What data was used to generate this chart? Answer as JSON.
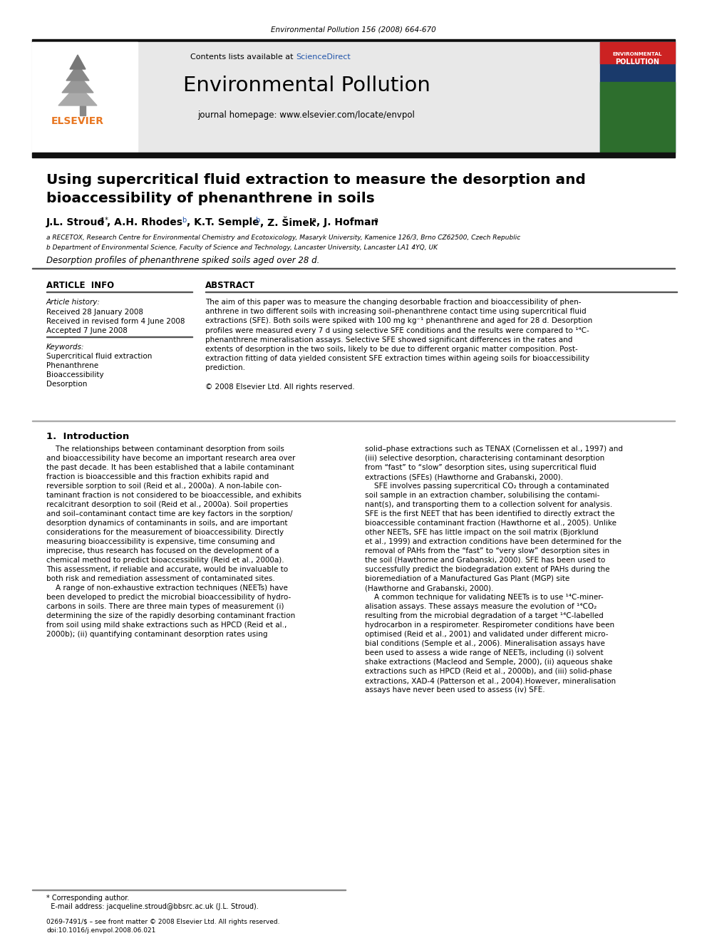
{
  "journal_ref": "Environmental Pollution 156 (2008) 664-670",
  "journal_name": "Environmental Pollution",
  "journal_homepage": "journal homepage: www.elsevier.com/locate/envpol",
  "contents_line": "Contents lists available at ScienceDirect",
  "title_line1": "Using supercritical fluid extraction to measure the desorption and",
  "title_line2": "bioaccessibility of phenanthrene in soils",
  "affil_a": "a RECETOX, Research Centre for Environmental Chemistry and Ecotoxicology, Masaryk University, Kamenice 126/3, Brno CZ62500, Czech Republic",
  "affil_b": "b Department of Environmental Science, Faculty of Science and Technology, Lancaster University, Lancaster LA1 4YQ, UK",
  "graphical_abstract": "Desorption profiles of phenanthrene spiked soils aged over 28 d.",
  "article_info_title": "ARTICLE  INFO",
  "article_history_label": "Article history:",
  "received": "Received 28 January 2008",
  "revised": "Received in revised form 4 June 2008",
  "accepted": "Accepted 7 June 2008",
  "keywords_label": "Keywords:",
  "keywords": [
    "Supercritical fluid extraction",
    "Phenanthrene",
    "Bioaccessibility",
    "Desorption"
  ],
  "abstract_title": "ABSTRACT",
  "abstract_lines": [
    "The aim of this paper was to measure the changing desorbable fraction and bioaccessibility of phen-",
    "anthrene in two different soils with increasing soil–phenanthrene contact time using supercritical fluid",
    "extractions (SFE). Both soils were spiked with 100 mg kg⁻¹ phenanthrene and aged for 28 d. Desorption",
    "profiles were measured every 7 d using selective SFE conditions and the results were compared to ¹⁴C-",
    "phenanthrene mineralisation assays. Selective SFE showed significant differences in the rates and",
    "extents of desorption in the two soils, likely to be due to different organic matter composition. Post-",
    "extraction fitting of data yielded consistent SFE extraction times within ageing soils for bioaccessibility",
    "prediction.",
    "",
    "© 2008 Elsevier Ltd. All rights reserved."
  ],
  "intro_title": "1.  Introduction",
  "intro_col1_lines": [
    "    The relationships between contaminant desorption from soils",
    "and bioaccessibility have become an important research area over",
    "the past decade. It has been established that a labile contaminant",
    "fraction is bioaccessible and this fraction exhibits rapid and",
    "reversible sorption to soil (Reid et al., 2000a). A non-labile con-",
    "taminant fraction is not considered to be bioaccessible, and exhibits",
    "recalcitrant desorption to soil (Reid et al., 2000a). Soil properties",
    "and soil–contaminant contact time are key factors in the sorption/",
    "desorption dynamics of contaminants in soils, and are important",
    "considerations for the measurement of bioaccessibility. Directly",
    "measuring bioaccessibility is expensive, time consuming and",
    "imprecise, thus research has focused on the development of a",
    "chemical method to predict bioaccessibility (Reid et al., 2000a).",
    "This assessment, if reliable and accurate, would be invaluable to",
    "both risk and remediation assessment of contaminated sites.",
    "    A range of non-exhaustive extraction techniques (NEETs) have",
    "been developed to predict the microbial bioaccessibility of hydro-",
    "carbons in soils. There are three main types of measurement (i)",
    "determining the size of the rapidly desorbing contaminant fraction",
    "from soil using mild shake extractions such as HPCD (Reid et al.,",
    "2000b); (ii) quantifying contaminant desorption rates using"
  ],
  "intro_col2_lines": [
    "solid–phase extractions such as TENAX (Cornelissen et al., 1997) and",
    "(iii) selective desorption, characterising contaminant desorption",
    "from “fast” to “slow” desorption sites, using supercritical fluid",
    "extractions (SFEs) (Hawthorne and Grabanski, 2000).",
    "    SFE involves passing supercritical CO₂ through a contaminated",
    "soil sample in an extraction chamber, solubilising the contami-",
    "nant(s), and transporting them to a collection solvent for analysis.",
    "SFE is the first NEET that has been identified to directly extract the",
    "bioaccessible contaminant fraction (Hawthorne et al., 2005). Unlike",
    "other NEETs, SFE has little impact on the soil matrix (Bjorklund",
    "et al., 1999) and extraction conditions have been determined for the",
    "removal of PAHs from the “fast” to “very slow” desorption sites in",
    "the soil (Hawthorne and Grabanski, 2000). SFE has been used to",
    "successfully predict the biodegradation extent of PAHs during the",
    "bioremediation of a Manufactured Gas Plant (MGP) site",
    "(Hawthorne and Grabanski, 2000).",
    "    A common technique for validating NEETs is to use ¹⁴C-miner-",
    "alisation assays. These assays measure the evolution of ¹⁴CO₂",
    "resulting from the microbial degradation of a target ¹⁴C-labelled",
    "hydrocarbon in a respirometer. Respirometer conditions have been",
    "optimised (Reid et al., 2001) and validated under different micro-",
    "bial conditions (Semple et al., 2006). Mineralisation assays have",
    "been used to assess a wide range of NEETs, including (i) solvent",
    "shake extractions (Macleod and Semple, 2000), (ii) aqueous shake",
    "extractions such as HPCD (Reid et al., 2000b), and (iii) solid-phase",
    "extractions, XAD-4 (Patterson et al., 2004).However, mineralisation",
    "assays have never been used to assess (iv) SFE."
  ],
  "footer_note1": "* Corresponding author.",
  "footer_note2": "  E-mail address: jacqueline.stroud@bbsrc.ac.uk (J.L. Stroud).",
  "footer_copy1": "0269-7491/$ – see front matter © 2008 Elsevier Ltd. All rights reserved.",
  "footer_copy2": "doi:10.1016/j.envpol.2008.06.021",
  "bg_header": "#e8e8e8",
  "color_sciencedirect": "#2255aa",
  "color_elsevier": "#e87722",
  "color_black": "#111111",
  "color_divider": "#555555"
}
